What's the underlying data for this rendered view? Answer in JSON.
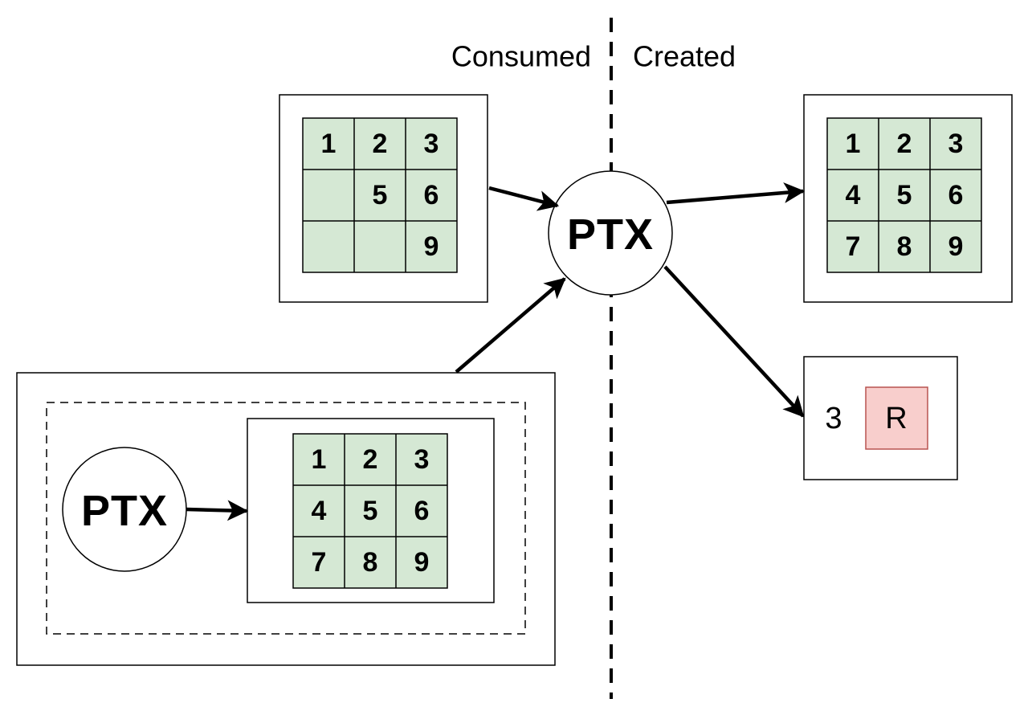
{
  "headers": {
    "consumed": "Consumed",
    "created": "Created"
  },
  "grids": {
    "consumed_top": [
      "1",
      "2",
      "3",
      "",
      "5",
      "6",
      "",
      "",
      "9"
    ],
    "created_top": [
      "1",
      "2",
      "3",
      "4",
      "5",
      "6",
      "7",
      "8",
      "9"
    ],
    "nested": [
      "1",
      "2",
      "3",
      "4",
      "5",
      "6",
      "7",
      "8",
      "9"
    ]
  },
  "nodes": {
    "ptx_main": "PTX",
    "ptx_nested": "PTX"
  },
  "output_state": {
    "count": "3",
    "party": "R"
  },
  "colors": {
    "cell_fill": "#d5e8d4",
    "party_fill": "#f8cecc",
    "party_stroke": "#b85450",
    "stroke": "#000000"
  }
}
